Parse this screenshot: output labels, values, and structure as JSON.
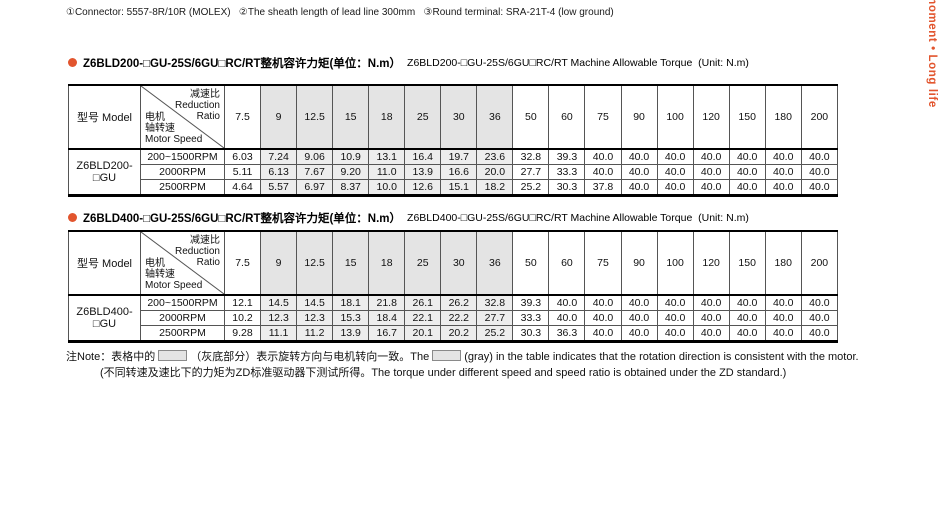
{
  "colors": {
    "accent": "#e2552e",
    "gray_header": "#e4e4e4",
    "gray_cell": "#ededed"
  },
  "header": {
    "note": "①Connector: 5557-8R/10R (MOLEX)   ②The sheath length of lead line 300mm   ③Round terminal: SRA-21T-4 (low ground)"
  },
  "side": {
    "text": "moment • Long life"
  },
  "table_common": {
    "model_header": "型号 Model",
    "diag": {
      "ratio_cn": "减速比",
      "ratio_en1": "Reduction",
      "ratio_en2": "Ratio",
      "speed_cn1": "电机",
      "speed_cn2": "轴转速",
      "speed_en": "Motor Speed"
    },
    "ratios": [
      "7.5",
      "9",
      "12.5",
      "15",
      "18",
      "25",
      "30",
      "36",
      "50",
      "60",
      "75",
      "90",
      "100",
      "120",
      "150",
      "180",
      "200"
    ],
    "gray_ratio_indices": [
      1,
      2,
      3,
      4,
      5,
      6,
      7
    ]
  },
  "tables": [
    {
      "title_cn": "Z6BLD200-□GU-25S/6GU□RC/RT整机容许力矩(单位：N.m）",
      "title_en": "Z6BLD200-□GU-25S/6GU□RC/RT Machine Allowable Torque  (Unit: N.m)",
      "model": "Z6BLD200-□GU",
      "rows": [
        {
          "speed": "200~1500RPM",
          "values": [
            "6.03",
            "7.24",
            "9.06",
            "10.9",
            "13.1",
            "16.4",
            "19.7",
            "23.6",
            "32.8",
            "39.3",
            "40.0",
            "40.0",
            "40.0",
            "40.0",
            "40.0",
            "40.0",
            "40.0"
          ]
        },
        {
          "speed": "2000RPM",
          "values": [
            "5.11",
            "6.13",
            "7.67",
            "9.20",
            "11.0",
            "13.9",
            "16.6",
            "20.0",
            "27.7",
            "33.3",
            "40.0",
            "40.0",
            "40.0",
            "40.0",
            "40.0",
            "40.0",
            "40.0"
          ]
        },
        {
          "speed": "2500RPM",
          "values": [
            "4.64",
            "5.57",
            "6.97",
            "8.37",
            "10.0",
            "12.6",
            "15.1",
            "18.2",
            "25.2",
            "30.3",
            "37.8",
            "40.0",
            "40.0",
            "40.0",
            "40.0",
            "40.0",
            "40.0"
          ]
        }
      ]
    },
    {
      "title_cn": "Z6BLD400-□GU-25S/6GU□RC/RT整机容许力矩(单位：N.m）",
      "title_en": "Z6BLD400-□GU-25S/6GU□RC/RT Machine Allowable Torque  (Unit: N.m)",
      "model": "Z6BLD400-□GU",
      "rows": [
        {
          "speed": "200~1500RPM",
          "values": [
            "12.1",
            "14.5",
            "14.5",
            "18.1",
            "21.8",
            "26.1",
            "26.2",
            "32.8",
            "39.3",
            "40.0",
            "40.0",
            "40.0",
            "40.0",
            "40.0",
            "40.0",
            "40.0",
            "40.0"
          ]
        },
        {
          "speed": "2000RPM",
          "values": [
            "10.2",
            "12.3",
            "12.3",
            "15.3",
            "18.4",
            "22.1",
            "22.2",
            "27.7",
            "33.3",
            "40.0",
            "40.0",
            "40.0",
            "40.0",
            "40.0",
            "40.0",
            "40.0",
            "40.0"
          ]
        },
        {
          "speed": "2500RPM",
          "values": [
            "9.28",
            "11.1",
            "11.2",
            "13.9",
            "16.7",
            "20.1",
            "20.2",
            "25.2",
            "30.3",
            "36.3",
            "40.0",
            "40.0",
            "40.0",
            "40.0",
            "40.0",
            "40.0",
            "40.0"
          ]
        }
      ]
    }
  ],
  "footnote": {
    "line1_prefix": "注Note：表格中的",
    "line1_cn": "（灰底部分）表示旋转方向与电机转向一致。The",
    "line1_en": "(gray) in the table indicates that the rotation direction is consistent with the motor.",
    "line2": "(不同转速及速比下的力矩为ZD标准驱动器下测试所得。The torque under different speed and speed ratio is obtained under the ZD standard.)"
  }
}
